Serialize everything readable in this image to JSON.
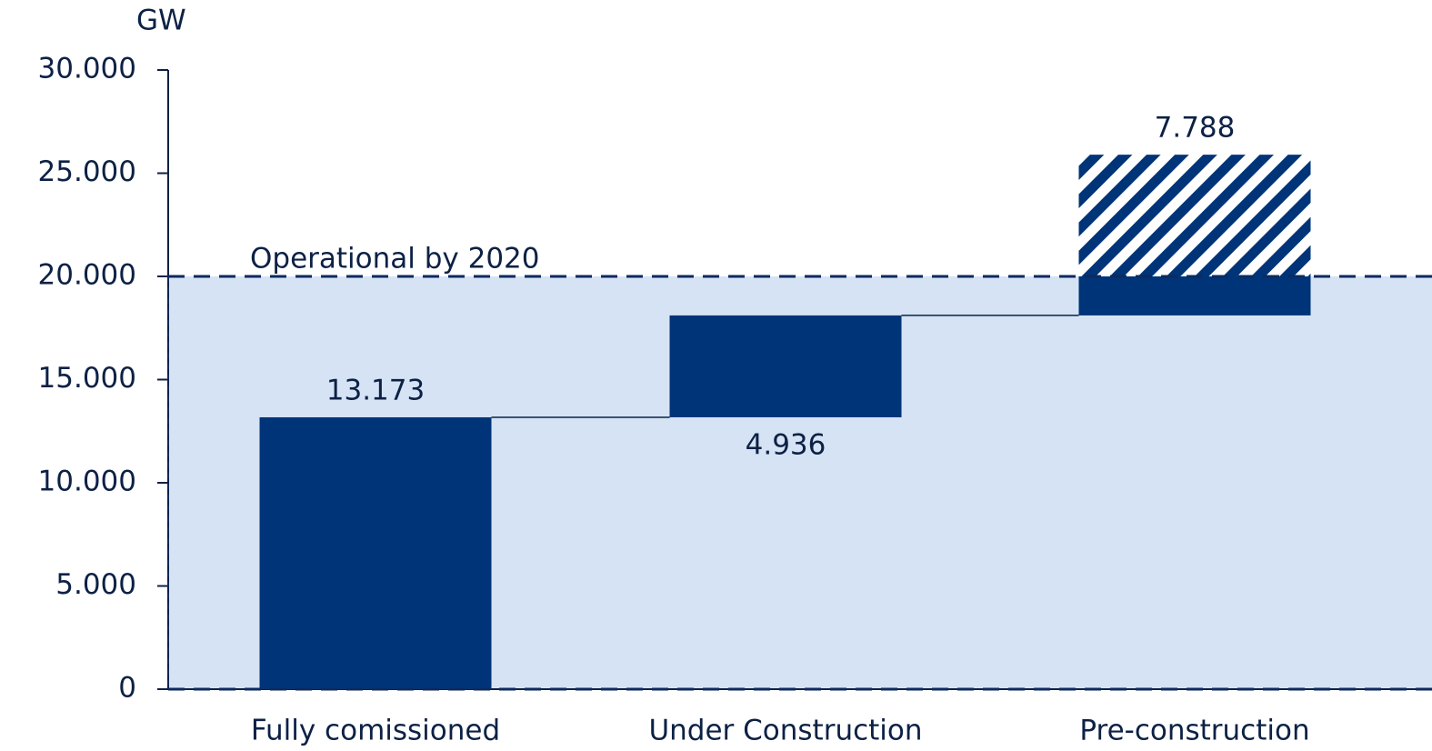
{
  "chart_data": {
    "type": "waterfall",
    "y_axis_label": "GW",
    "categories": [
      "Fully comissioned",
      "Under Construction",
      "Pre-construction"
    ],
    "values": [
      13.173,
      4.936,
      7.788
    ],
    "color": "#003478",
    "threshold": {
      "label": "Operational by 2020",
      "value": 20,
      "color": "#d5e3f4"
    },
    "ylim": [
      0,
      30
    ],
    "yticks": [
      0,
      {
        "value": 5,
        "label": "5.000"
      },
      {
        "value": 10,
        "label": "10.000"
      },
      {
        "value": 15,
        "label": "15.000"
      },
      {
        "value": 20,
        "label": "20.000"
      },
      {
        "value": 25,
        "label": "25.000"
      },
      {
        "value": 30,
        "label": "30.000"
      }
    ]
  }
}
